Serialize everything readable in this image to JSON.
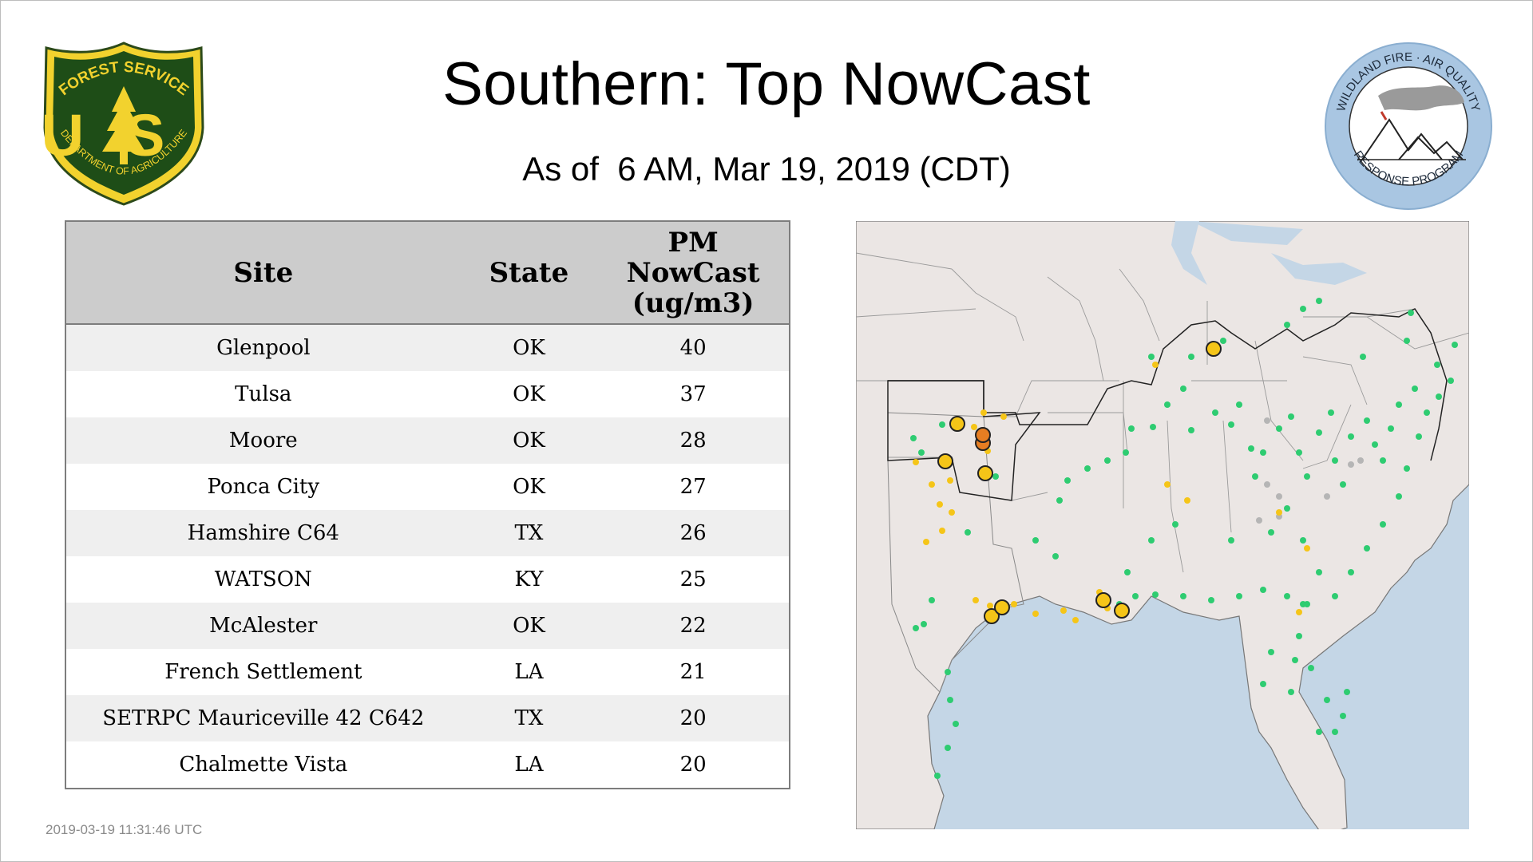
{
  "header": {
    "title": "Southern: Top NowCast",
    "subtitle": "As of  6 AM, Mar 19, 2019 (CDT)"
  },
  "logos": {
    "forest_service": {
      "top_text": "FOREST SERVICE",
      "letters": "US",
      "bottom_text": "DEPARTMENT OF AGRICULTURE"
    },
    "wildland": {
      "top_text": "WILDLAND FIRE · AIR QUALITY",
      "bottom_text": "RESPONSE PROGRAM"
    }
  },
  "table": {
    "headers": {
      "site": "Site",
      "state": "State",
      "nowcast_line1": "PM",
      "nowcast_line2": "NowCast",
      "nowcast_line3": "(ug/m3)"
    },
    "rows": [
      {
        "site": "Glenpool",
        "state": "OK",
        "value": "40"
      },
      {
        "site": "Tulsa",
        "state": "OK",
        "value": "37"
      },
      {
        "site": "Moore",
        "state": "OK",
        "value": "28"
      },
      {
        "site": "Ponca City",
        "state": "OK",
        "value": "27"
      },
      {
        "site": "Hamshire C64",
        "state": "TX",
        "value": "26"
      },
      {
        "site": "WATSON",
        "state": "KY",
        "value": "25"
      },
      {
        "site": "McAlester",
        "state": "OK",
        "value": "22"
      },
      {
        "site": "French Settlement",
        "state": "LA",
        "value": "21"
      },
      {
        "site": "SETRPC Mauriceville 42 C642",
        "state": "TX",
        "value": "20"
      },
      {
        "site": "Chalmette Vista",
        "state": "LA",
        "value": "20"
      }
    ]
  },
  "colors": {
    "good": "#2ecc71",
    "moderate": "#f5c518",
    "usg": "#e67e22",
    "no_data": "#b5b5b5",
    "land": "#ebe6e4",
    "water": "#c4d6e6"
  },
  "footer": {
    "timestamp": "2019-03-19 11:31:46 UTC"
  }
}
